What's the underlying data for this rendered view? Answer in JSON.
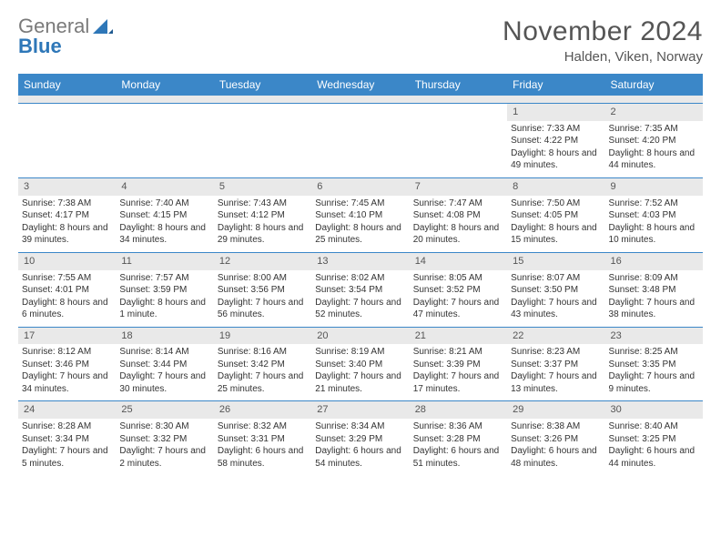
{
  "brand": {
    "grey": "General",
    "blue": "Blue"
  },
  "title": {
    "month": "November 2024",
    "location": "Halden, Viken, Norway"
  },
  "colors": {
    "header_bg": "#3b87c8",
    "header_text": "#ffffff",
    "daynum_bg": "#e9e9e9",
    "rule": "#3b87c8",
    "body_text": "#333333",
    "logo_grey": "#7a7a7a",
    "logo_blue": "#2e77b8"
  },
  "typography": {
    "title_fontsize": 30,
    "location_fontsize": 15,
    "dow_fontsize": 12,
    "cell_fontsize": 10
  },
  "dow": [
    "Sunday",
    "Monday",
    "Tuesday",
    "Wednesday",
    "Thursday",
    "Friday",
    "Saturday"
  ],
  "weeks": [
    [
      null,
      null,
      null,
      null,
      null,
      {
        "n": "1",
        "sunrise": "Sunrise: 7:33 AM",
        "sunset": "Sunset: 4:22 PM",
        "daylight": "Daylight: 8 hours and 49 minutes."
      },
      {
        "n": "2",
        "sunrise": "Sunrise: 7:35 AM",
        "sunset": "Sunset: 4:20 PM",
        "daylight": "Daylight: 8 hours and 44 minutes."
      }
    ],
    [
      {
        "n": "3",
        "sunrise": "Sunrise: 7:38 AM",
        "sunset": "Sunset: 4:17 PM",
        "daylight": "Daylight: 8 hours and 39 minutes."
      },
      {
        "n": "4",
        "sunrise": "Sunrise: 7:40 AM",
        "sunset": "Sunset: 4:15 PM",
        "daylight": "Daylight: 8 hours and 34 minutes."
      },
      {
        "n": "5",
        "sunrise": "Sunrise: 7:43 AM",
        "sunset": "Sunset: 4:12 PM",
        "daylight": "Daylight: 8 hours and 29 minutes."
      },
      {
        "n": "6",
        "sunrise": "Sunrise: 7:45 AM",
        "sunset": "Sunset: 4:10 PM",
        "daylight": "Daylight: 8 hours and 25 minutes."
      },
      {
        "n": "7",
        "sunrise": "Sunrise: 7:47 AM",
        "sunset": "Sunset: 4:08 PM",
        "daylight": "Daylight: 8 hours and 20 minutes."
      },
      {
        "n": "8",
        "sunrise": "Sunrise: 7:50 AM",
        "sunset": "Sunset: 4:05 PM",
        "daylight": "Daylight: 8 hours and 15 minutes."
      },
      {
        "n": "9",
        "sunrise": "Sunrise: 7:52 AM",
        "sunset": "Sunset: 4:03 PM",
        "daylight": "Daylight: 8 hours and 10 minutes."
      }
    ],
    [
      {
        "n": "10",
        "sunrise": "Sunrise: 7:55 AM",
        "sunset": "Sunset: 4:01 PM",
        "daylight": "Daylight: 8 hours and 6 minutes."
      },
      {
        "n": "11",
        "sunrise": "Sunrise: 7:57 AM",
        "sunset": "Sunset: 3:59 PM",
        "daylight": "Daylight: 8 hours and 1 minute."
      },
      {
        "n": "12",
        "sunrise": "Sunrise: 8:00 AM",
        "sunset": "Sunset: 3:56 PM",
        "daylight": "Daylight: 7 hours and 56 minutes."
      },
      {
        "n": "13",
        "sunrise": "Sunrise: 8:02 AM",
        "sunset": "Sunset: 3:54 PM",
        "daylight": "Daylight: 7 hours and 52 minutes."
      },
      {
        "n": "14",
        "sunrise": "Sunrise: 8:05 AM",
        "sunset": "Sunset: 3:52 PM",
        "daylight": "Daylight: 7 hours and 47 minutes."
      },
      {
        "n": "15",
        "sunrise": "Sunrise: 8:07 AM",
        "sunset": "Sunset: 3:50 PM",
        "daylight": "Daylight: 7 hours and 43 minutes."
      },
      {
        "n": "16",
        "sunrise": "Sunrise: 8:09 AM",
        "sunset": "Sunset: 3:48 PM",
        "daylight": "Daylight: 7 hours and 38 minutes."
      }
    ],
    [
      {
        "n": "17",
        "sunrise": "Sunrise: 8:12 AM",
        "sunset": "Sunset: 3:46 PM",
        "daylight": "Daylight: 7 hours and 34 minutes."
      },
      {
        "n": "18",
        "sunrise": "Sunrise: 8:14 AM",
        "sunset": "Sunset: 3:44 PM",
        "daylight": "Daylight: 7 hours and 30 minutes."
      },
      {
        "n": "19",
        "sunrise": "Sunrise: 8:16 AM",
        "sunset": "Sunset: 3:42 PM",
        "daylight": "Daylight: 7 hours and 25 minutes."
      },
      {
        "n": "20",
        "sunrise": "Sunrise: 8:19 AM",
        "sunset": "Sunset: 3:40 PM",
        "daylight": "Daylight: 7 hours and 21 minutes."
      },
      {
        "n": "21",
        "sunrise": "Sunrise: 8:21 AM",
        "sunset": "Sunset: 3:39 PM",
        "daylight": "Daylight: 7 hours and 17 minutes."
      },
      {
        "n": "22",
        "sunrise": "Sunrise: 8:23 AM",
        "sunset": "Sunset: 3:37 PM",
        "daylight": "Daylight: 7 hours and 13 minutes."
      },
      {
        "n": "23",
        "sunrise": "Sunrise: 8:25 AM",
        "sunset": "Sunset: 3:35 PM",
        "daylight": "Daylight: 7 hours and 9 minutes."
      }
    ],
    [
      {
        "n": "24",
        "sunrise": "Sunrise: 8:28 AM",
        "sunset": "Sunset: 3:34 PM",
        "daylight": "Daylight: 7 hours and 5 minutes."
      },
      {
        "n": "25",
        "sunrise": "Sunrise: 8:30 AM",
        "sunset": "Sunset: 3:32 PM",
        "daylight": "Daylight: 7 hours and 2 minutes."
      },
      {
        "n": "26",
        "sunrise": "Sunrise: 8:32 AM",
        "sunset": "Sunset: 3:31 PM",
        "daylight": "Daylight: 6 hours and 58 minutes."
      },
      {
        "n": "27",
        "sunrise": "Sunrise: 8:34 AM",
        "sunset": "Sunset: 3:29 PM",
        "daylight": "Daylight: 6 hours and 54 minutes."
      },
      {
        "n": "28",
        "sunrise": "Sunrise: 8:36 AM",
        "sunset": "Sunset: 3:28 PM",
        "daylight": "Daylight: 6 hours and 51 minutes."
      },
      {
        "n": "29",
        "sunrise": "Sunrise: 8:38 AM",
        "sunset": "Sunset: 3:26 PM",
        "daylight": "Daylight: 6 hours and 48 minutes."
      },
      {
        "n": "30",
        "sunrise": "Sunrise: 8:40 AM",
        "sunset": "Sunset: 3:25 PM",
        "daylight": "Daylight: 6 hours and 44 minutes."
      }
    ]
  ]
}
